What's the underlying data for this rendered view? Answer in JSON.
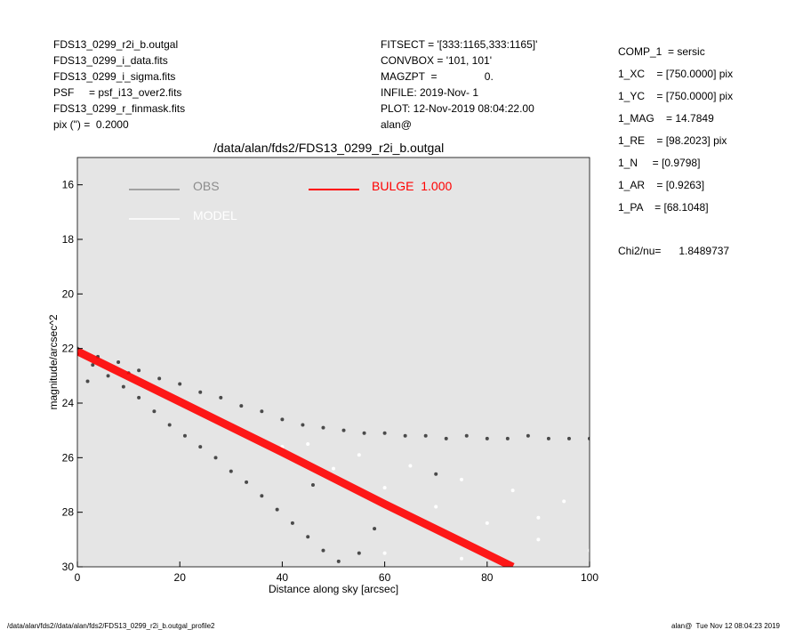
{
  "header": {
    "left": [
      "FDS13_0299_r2i_b.outgal",
      "FDS13_0299_i_data.fits",
      "FDS13_0299_i_sigma.fits",
      "PSF     = psf_i13_over2.fits",
      "FDS13_0299_r_finmask.fits",
      "pix (\") =  0.2000"
    ],
    "middle": [
      "FITSECT = '[333:1165,333:1165]'",
      "CONVBOX = '101, 101'",
      "MAGZPT  =                0.",
      "INFILE: 2019-Nov- 1",
      "PLOT: 12-Nov-2019 08:04:22.00",
      "alan@"
    ],
    "right": [
      "COMP_1  = sersic",
      "1_XC    = [750.0000] pix",
      "1_YC    = [750.0000] pix",
      "1_MAG    = 14.7849",
      "1_RE    = [98.2023] pix",
      "1_N     = [0.9798]",
      "1_AR    = [0.9263]",
      "1_PA    = [68.1048]"
    ],
    "chi2": "Chi2/nu=      1.8489737"
  },
  "footer": {
    "left": "/data/alan/fds2//data/alan/fds2/FDS13_0299_r2i_b.outgal_profile2",
    "right": "alan@  Tue Nov 12 08:04:23 2019"
  },
  "chart_data": {
    "type": "scatter",
    "title": "/data/alan/fds2/FDS13_0299_r2i_b.outgal",
    "x_label": "Distance along sky [arcsec]",
    "y_label": "magnitude/arcsec^2",
    "xlim": [
      0,
      100
    ],
    "xticks": [
      0,
      20,
      40,
      60,
      80,
      100
    ],
    "ylim": [
      30,
      15
    ],
    "yticks": [
      16,
      18,
      20,
      22,
      24,
      26,
      28,
      30
    ],
    "background": "#e5e5e5",
    "series": [
      {
        "name": "OBS",
        "color": "#4a4a4a",
        "legend_color": "#8c8c8c",
        "mode": "points",
        "x": [
          0,
          4,
          8,
          12,
          16,
          20,
          24,
          28,
          32,
          36,
          40,
          44,
          48,
          52,
          56,
          60,
          64,
          68,
          72,
          76,
          80,
          84,
          88,
          92,
          96,
          100,
          0,
          3,
          6,
          9,
          12,
          15,
          18,
          21,
          24,
          27,
          30,
          33,
          36,
          39,
          42,
          45,
          48,
          51,
          46,
          58,
          70,
          55,
          2,
          10
        ],
        "values": [
          22.0,
          22.3,
          22.5,
          22.8,
          23.1,
          23.3,
          23.6,
          23.8,
          24.1,
          24.3,
          24.6,
          24.8,
          24.9,
          25.0,
          25.1,
          25.1,
          25.2,
          25.2,
          25.3,
          25.2,
          25.3,
          25.3,
          25.2,
          25.3,
          25.3,
          25.3,
          22.2,
          22.6,
          23.0,
          23.4,
          23.8,
          24.3,
          24.8,
          25.2,
          25.6,
          26.0,
          26.5,
          26.9,
          27.4,
          27.9,
          28.4,
          28.9,
          29.4,
          29.8,
          27.0,
          28.6,
          26.6,
          29.5,
          23.2,
          22.9
        ]
      },
      {
        "name": "MODEL",
        "color": "#ffffff",
        "legend_color": "#ffffff",
        "mode": "points",
        "x": [
          10,
          20,
          30,
          40,
          50,
          60,
          70,
          80,
          90,
          100,
          45,
          55,
          65,
          75,
          85,
          95,
          60,
          75,
          90
        ],
        "values": [
          23.0,
          23.9,
          24.8,
          25.6,
          26.4,
          27.1,
          27.8,
          28.4,
          29.0,
          29.4,
          25.5,
          25.9,
          26.3,
          26.8,
          27.2,
          27.6,
          29.5,
          29.7,
          28.2
        ]
      },
      {
        "name": "BULGE  1.000",
        "color": "#ff0000",
        "legend_color": "#ff0000",
        "mode": "line",
        "x": [
          0,
          20,
          40,
          60,
          85
        ],
        "values": [
          22.1,
          23.95,
          25.8,
          27.7,
          30.0
        ]
      }
    ]
  }
}
